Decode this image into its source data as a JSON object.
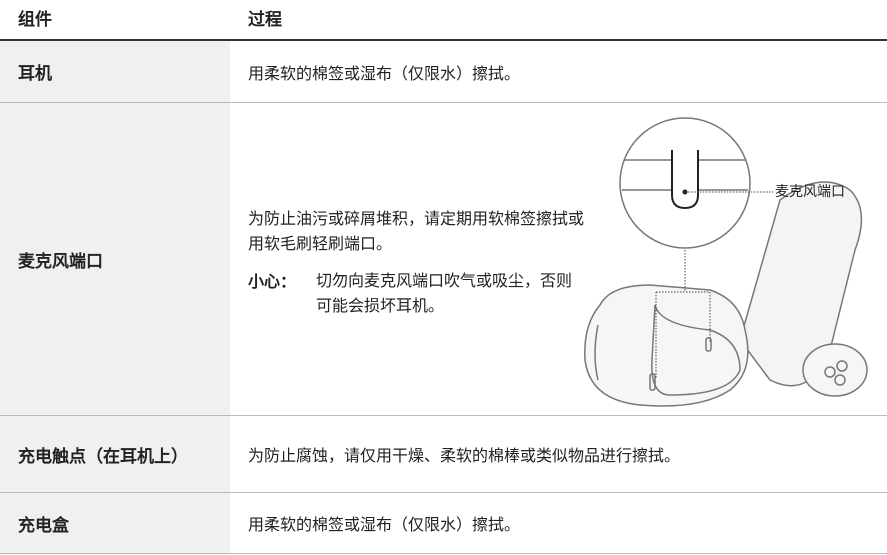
{
  "table": {
    "header": [
      "组件",
      "过程"
    ],
    "rows": [
      {
        "component": "耳机",
        "process": "用柔软的棉签或湿布（仅限水）擦拭。"
      },
      {
        "component": "麦克风端口",
        "process": "为防止油污或碎屑堆积，请定期用软棉签擦拭或用软毛刷轻刷端口。",
        "caution_label": "小心：",
        "caution_text": "切勿向麦克风端口吹气或吸尘，否则可能会损坏耳机。",
        "figure_label": "麦克风端口"
      },
      {
        "component": "充电触点（在耳机上）",
        "process": "为防止腐蚀，请仅用干燥、柔软的棉棒或类似物品进行擦拭。"
      },
      {
        "component": "充电盒",
        "process": "用柔软的棉签或湿布（仅限水）擦拭。"
      }
    ]
  }
}
